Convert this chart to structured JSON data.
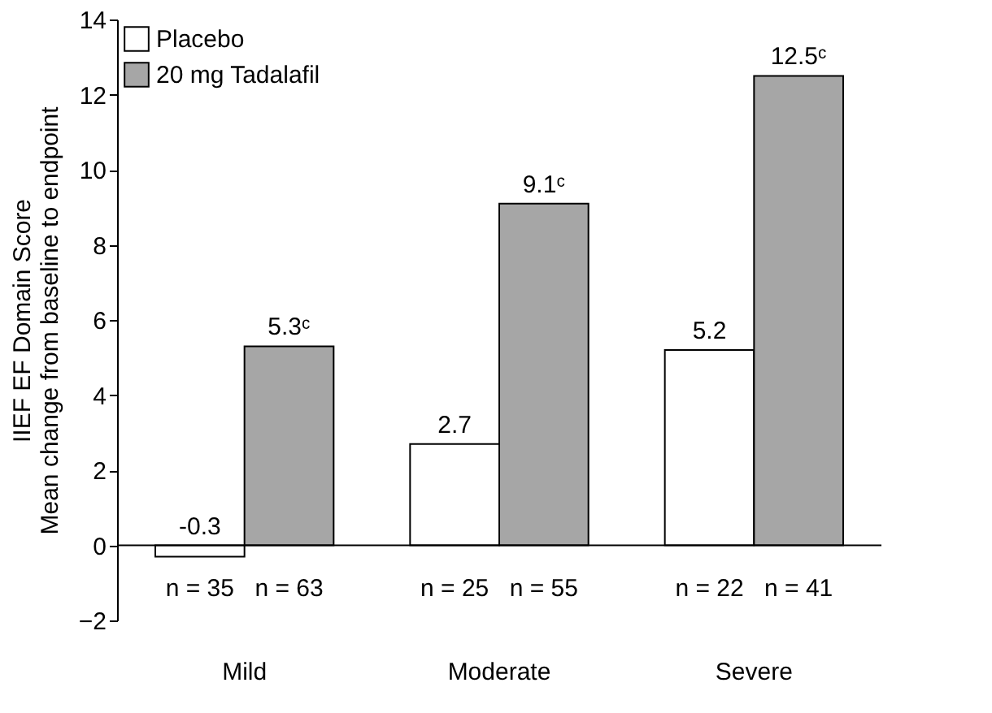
{
  "chart_data": {
    "type": "bar",
    "categories": [
      "Mild",
      "Moderate",
      "Severe"
    ],
    "ylabel": "IIEF EF Domain Score\nMean change from baseline to endpoint",
    "series": [
      {
        "name": "Placebo",
        "color": "#ffffff",
        "values": [
          -0.3,
          2.7,
          5.2
        ],
        "value_labels": [
          "-0.3",
          "2.7",
          "5.2"
        ]
      },
      {
        "name": "20 mg Tadalafil",
        "color": "#a6a6a6",
        "values": [
          5.3,
          9.1,
          12.5
        ],
        "value_labels": [
          "5.3ᶜ",
          "9.1ᶜ",
          "12.5ᶜ"
        ]
      }
    ],
    "ylim": [
      -2,
      14
    ],
    "yticks": [
      -2,
      0,
      2,
      4,
      6,
      8,
      10,
      12,
      14
    ],
    "grid": false,
    "legend": "top left",
    "ref_lines": [
      {
        "axis": "y",
        "value": 0
      }
    ],
    "annotations": [
      "n = 35",
      "n = 63",
      "n = 25",
      "n = 55",
      "n = 22",
      "n = 41"
    ]
  }
}
